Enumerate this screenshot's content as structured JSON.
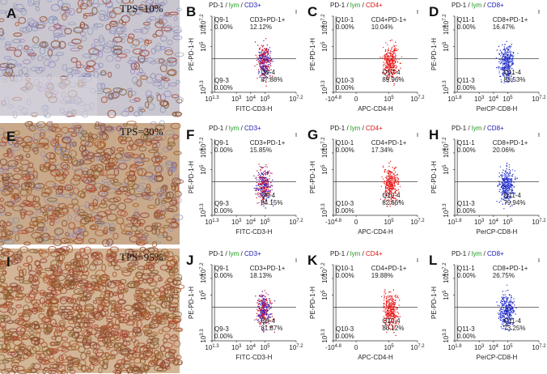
{
  "rows": [
    {
      "image": {
        "letter": "A",
        "label": "TPS=10%"
      },
      "plots": [
        {
          "letter": "B",
          "title": [
            "PD-1 / ",
            "lym",
            " / ",
            "CD3+"
          ],
          "title_colors": [
            "#222222",
            "#1a9a1a",
            "#222222",
            "#1a1ab4"
          ],
          "dot_colors": [
            "#e01010",
            "#2020c0",
            "#a02080"
          ],
          "y_label": "PE-PD-1-H",
          "x_label": "FITC-CD3-H",
          "y_ticks": [
            {
              "base": "10",
              "exp": "7.2"
            },
            {
              "base": "10",
              "exp": "6"
            },
            {
              "base": "10",
              "exp": "5"
            },
            {
              "base": "10",
              "exp": "3.3"
            }
          ],
          "x_ticks": [
            {
              "base": "10",
              "exp": "1.3"
            },
            {
              "base": "10",
              "exp": "3"
            },
            {
              "base": "10",
              "exp": "4"
            },
            {
              "base": "10",
              "exp": "5"
            },
            {
              "base": "10",
              "exp": "7.2"
            }
          ],
          "quadrants": [
            [
              "Q9-1",
              "0.00%"
            ],
            [
              "CD3+PD-1+",
              "12.12%"
            ],
            [
              "Q9-3",
              "0.00%"
            ],
            [
              "Q9-4",
              "87.88%"
            ]
          ]
        },
        {
          "letter": "C",
          "title": [
            "PD-1 / ",
            "lym",
            " / ",
            "CD4+"
          ],
          "title_colors": [
            "#222222",
            "#1a9a1a",
            "#222222",
            "#e01010"
          ],
          "dot_colors": [
            "#e01010",
            "#f03030"
          ],
          "y_label": "PE-PD-1-H",
          "x_label": "APC-CD4-H",
          "y_ticks": [
            {
              "base": "10",
              "exp": "7.2"
            },
            {
              "base": "10",
              "exp": "6"
            },
            {
              "base": "10",
              "exp": "5"
            },
            {
              "base": "10",
              "exp": "3.3"
            }
          ],
          "x_ticks": [
            {
              "base": "-10",
              "exp": "4.8"
            },
            {
              "base": "0"
            },
            {
              "base": "10",
              "exp": "5"
            },
            {
              "base": "10",
              "exp": "7.2"
            }
          ],
          "quadrants": [
            [
              "Q10-1",
              "0.00%"
            ],
            [
              "CD4+PD-1+",
              "10.04%"
            ],
            [
              "Q10-3",
              "0.00%"
            ],
            [
              "Q10-4",
              "89.96%"
            ]
          ]
        },
        {
          "letter": "D",
          "title": [
            "PD-1 / ",
            "lym",
            " / ",
            "CD8+"
          ],
          "title_colors": [
            "#222222",
            "#1a9a1a",
            "#222222",
            "#1a1ab4"
          ],
          "dot_colors": [
            "#1a1ab4",
            "#3a50e0"
          ],
          "y_label": "PE-PD-1-H",
          "x_label": "PerCP-CD8-H",
          "y_ticks": [
            {
              "base": "10",
              "exp": "7.2"
            },
            {
              "base": "10",
              "exp": "6"
            },
            {
              "base": "10",
              "exp": "5"
            },
            {
              "base": "10",
              "exp": "3.3"
            }
          ],
          "x_ticks": [
            {
              "base": "10",
              "exp": "1.8"
            },
            {
              "base": "10",
              "exp": "3"
            },
            {
              "base": "10",
              "exp": "4"
            },
            {
              "base": "10",
              "exp": "5"
            },
            {
              "base": "10",
              "exp": "7.2"
            }
          ],
          "quadrants": [
            [
              "Q11-1",
              "0.00%"
            ],
            [
              "CD8+PD-1+",
              "16.47%"
            ],
            [
              "Q11-3",
              "0.00%"
            ],
            [
              "Q11-4",
              "83.53%"
            ]
          ]
        }
      ]
    },
    {
      "image": {
        "letter": "E",
        "label": "TPS=30%"
      },
      "plots": [
        {
          "letter": "F",
          "title": [
            "PD-1 / ",
            "lym",
            " / ",
            "CD3+"
          ],
          "title_colors": [
            "#222222",
            "#1a9a1a",
            "#222222",
            "#1a1ab4"
          ],
          "dot_colors": [
            "#e01010",
            "#2020c0",
            "#a02080"
          ],
          "y_label": "PE-PD-1-H",
          "x_label": "FITC-CD3-H",
          "y_ticks": [
            {
              "base": "10",
              "exp": "7.2"
            },
            {
              "base": "10",
              "exp": "6"
            },
            {
              "base": "10",
              "exp": "5"
            },
            {
              "base": "10",
              "exp": "3.3"
            }
          ],
          "x_ticks": [
            {
              "base": "10",
              "exp": "1.3"
            },
            {
              "base": "10",
              "exp": "3"
            },
            {
              "base": "10",
              "exp": "4"
            },
            {
              "base": "10",
              "exp": "5"
            },
            {
              "base": "10",
              "exp": "7.2"
            }
          ],
          "quadrants": [
            [
              "Q9-1",
              "0.00%"
            ],
            [
              "CD3+PD-1+",
              "15.85%"
            ],
            [
              "Q9-3",
              "0.00%"
            ],
            [
              "Q9-4",
              "84.15%"
            ]
          ]
        },
        {
          "letter": "G",
          "title": [
            "PD-1 / ",
            "lym",
            " / ",
            "CD4+"
          ],
          "title_colors": [
            "#222222",
            "#1a9a1a",
            "#222222",
            "#e01010"
          ],
          "dot_colors": [
            "#e01010",
            "#f03030"
          ],
          "y_label": "PE-PD-1-H",
          "x_label": "APC-CD4-H",
          "y_ticks": [
            {
              "base": "10",
              "exp": "7.2"
            },
            {
              "base": "10",
              "exp": "6"
            },
            {
              "base": "10",
              "exp": "5"
            },
            {
              "base": "10",
              "exp": "3.3"
            }
          ],
          "x_ticks": [
            {
              "base": "-10",
              "exp": "4.8"
            },
            {
              "base": "0"
            },
            {
              "base": "10",
              "exp": "5"
            },
            {
              "base": "10",
              "exp": "7.2"
            }
          ],
          "quadrants": [
            [
              "Q10-1",
              "0.00%"
            ],
            [
              "CD4+PD-1+",
              "17.34%"
            ],
            [
              "Q10-3",
              "0.00%"
            ],
            [
              "Q10-4",
              "82.66%"
            ]
          ]
        },
        {
          "letter": "H",
          "title": [
            "PD-1 / ",
            "lym",
            " / ",
            "CD8+"
          ],
          "title_colors": [
            "#222222",
            "#1a9a1a",
            "#222222",
            "#1a1ab4"
          ],
          "dot_colors": [
            "#1a1ab4",
            "#3a50e0"
          ],
          "y_label": "PE-PD-1-H",
          "x_label": "PerCP-CD8-H",
          "y_ticks": [
            {
              "base": "10",
              "exp": "7.2"
            },
            {
              "base": "10",
              "exp": "6"
            },
            {
              "base": "10",
              "exp": "5"
            },
            {
              "base": "10",
              "exp": "3.3"
            }
          ],
          "x_ticks": [
            {
              "base": "10",
              "exp": "1.8"
            },
            {
              "base": "10",
              "exp": "3"
            },
            {
              "base": "10",
              "exp": "4"
            },
            {
              "base": "10",
              "exp": "5"
            },
            {
              "base": "10",
              "exp": "7.2"
            }
          ],
          "quadrants": [
            [
              "Q11-1",
              "0.00%"
            ],
            [
              "CD8+PD-1+",
              "20.06%"
            ],
            [
              "Q11-3",
              "0.00%"
            ],
            [
              "Q11-4",
              "79.94%"
            ]
          ]
        }
      ]
    },
    {
      "image": {
        "letter": "I",
        "label": "TPS=95%"
      },
      "plots": [
        {
          "letter": "J",
          "title": [
            "PD-1 / ",
            "lym",
            " / ",
            "CD3+"
          ],
          "title_colors": [
            "#222222",
            "#1a9a1a",
            "#222222",
            "#1a1ab4"
          ],
          "dot_colors": [
            "#e01010",
            "#2020c0",
            "#a02080"
          ],
          "y_label": "PE-PD-1-H",
          "x_label": "FITC-CD3-H",
          "y_ticks": [
            {
              "base": "10",
              "exp": "7.2"
            },
            {
              "base": "10",
              "exp": "6"
            },
            {
              "base": "10",
              "exp": "5"
            },
            {
              "base": "10",
              "exp": "3.3"
            }
          ],
          "x_ticks": [
            {
              "base": "10",
              "exp": "1.3"
            },
            {
              "base": "10",
              "exp": "3"
            },
            {
              "base": "10",
              "exp": "4"
            },
            {
              "base": "10",
              "exp": "5"
            },
            {
              "base": "10",
              "exp": "7.2"
            }
          ],
          "quadrants": [
            [
              "Q9-1",
              "0.00%"
            ],
            [
              "CD3+PD-1+",
              "18.13%"
            ],
            [
              "Q9-3",
              "0.00%"
            ],
            [
              "Q9-4",
              "81.87%"
            ]
          ]
        },
        {
          "letter": "K",
          "title": [
            "PD-1 / ",
            "lym",
            " / ",
            "CD4+"
          ],
          "title_colors": [
            "#222222",
            "#1a9a1a",
            "#222222",
            "#e01010"
          ],
          "dot_colors": [
            "#e01010",
            "#f03030"
          ],
          "y_label": "PE-PD-1-H",
          "x_label": "APC-CD4-H",
          "y_ticks": [
            {
              "base": "10",
              "exp": "7.2"
            },
            {
              "base": "10",
              "exp": "6"
            },
            {
              "base": "10",
              "exp": "5"
            },
            {
              "base": "10",
              "exp": "3.3"
            }
          ],
          "x_ticks": [
            {
              "base": "-10",
              "exp": "4.8"
            },
            {
              "base": "0"
            },
            {
              "base": "10",
              "exp": "5"
            },
            {
              "base": "10",
              "exp": "7.2"
            }
          ],
          "quadrants": [
            [
              "Q10-1",
              "0.00%"
            ],
            [
              "CD4+PD-1+",
              "19.88%"
            ],
            [
              "Q10-3",
              "0.00%"
            ],
            [
              "Q10-4",
              "80.12%"
            ]
          ]
        },
        {
          "letter": "L",
          "title": [
            "PD-1 / ",
            "lym",
            " / ",
            "CD8+"
          ],
          "title_colors": [
            "#222222",
            "#1a9a1a",
            "#222222",
            "#1a1ab4"
          ],
          "dot_colors": [
            "#1a1ab4",
            "#3a50e0"
          ],
          "y_label": "PE-PD-1-H",
          "x_label": "PerCP-CD8-H",
          "y_ticks": [
            {
              "base": "10",
              "exp": "7.2"
            },
            {
              "base": "10",
              "exp": "6"
            },
            {
              "base": "10",
              "exp": "5"
            },
            {
              "base": "10",
              "exp": "3.3"
            }
          ],
          "x_ticks": [
            {
              "base": "10",
              "exp": "1.8"
            },
            {
              "base": "10",
              "exp": "3"
            },
            {
              "base": "10",
              "exp": "4"
            },
            {
              "base": "10",
              "exp": "5"
            },
            {
              "base": "10",
              "exp": "7.2"
            }
          ],
          "quadrants": [
            [
              "Q11-1",
              "0.00%"
            ],
            [
              "CD8+PD-1+",
              "26.75%"
            ],
            [
              "Q11-3",
              "0.00%"
            ],
            [
              "Q11-4",
              "73.25%"
            ]
          ]
        }
      ]
    }
  ]
}
